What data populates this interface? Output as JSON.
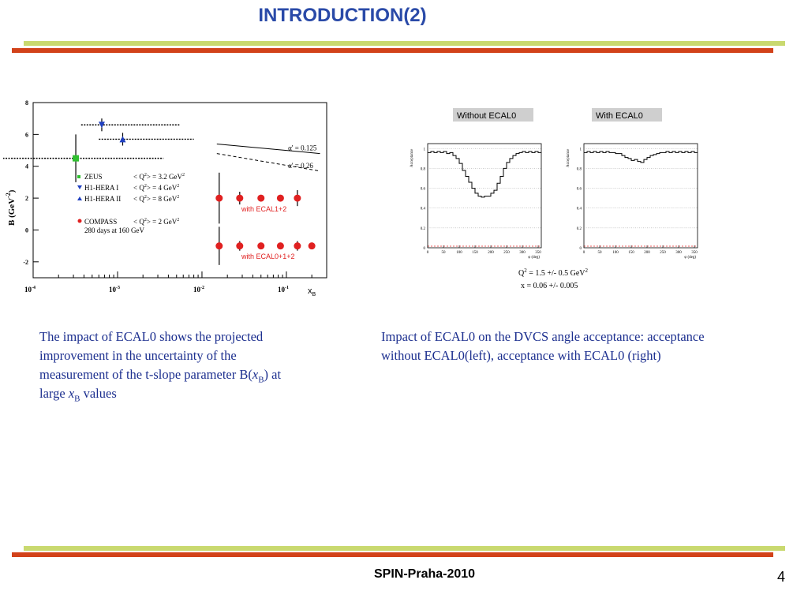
{
  "slide": {
    "title": "INTRODUCTION(2)",
    "footer": "SPIN-Praha-2010",
    "page_number": "4"
  },
  "captions": {
    "left": {
      "line1": "The impact of  ECAL0 shows the projected",
      "line2": "improvement in the uncertainty of  the",
      "line3_pre": "measurement of the t-slope parameter B(",
      "var_x": "x",
      "sub_b": "B",
      "line3_post": ") at",
      "line4_pre": "large ",
      "line4_post": " values"
    },
    "right": {
      "line1": "Impact of ECAL0 on the DVCS  angle acceptance: acceptance",
      "line2": "without ECAL0(left), acceptance with ECAL0 (right)"
    }
  },
  "colors": {
    "accent_blue": "#2a4aa8",
    "bar_green": "#c9d96f",
    "bar_red": "#d2421a",
    "compass_red": "#e02020",
    "zeus_green": "#30c030",
    "hera_blue": "#2040c0"
  },
  "chart_data": [
    {
      "type": "scatter",
      "title": "",
      "xscale": "log",
      "xlabel": "x",
      "xlabel_sub": "B",
      "ylabel": "B (GeV",
      "ylabel_sup": "-2",
      "ylabel_end": ")",
      "xlim": [
        0.0001,
        0.3
      ],
      "ylim": [
        -3,
        8
      ],
      "yticks": [
        -2,
        0,
        2,
        4,
        6,
        8
      ],
      "xtick_labels": [
        {
          "base": "10",
          "exp": "-4"
        },
        {
          "base": "10",
          "exp": "-3"
        },
        {
          "base": "10",
          "exp": "-2"
        },
        {
          "base": "10",
          "exp": "-1"
        }
      ],
      "series": [
        {
          "name": "ZEUS",
          "marker": "square",
          "color": "#30c030",
          "x": [
            0.00032
          ],
          "y": [
            4.5
          ],
          "err": [
            1.5
          ],
          "xerr": [
            [
              3e-05,
              0.0035
            ]
          ]
        },
        {
          "name": "H1-HERA I",
          "marker": "triangle-down",
          "color": "#2040c0",
          "x": [
            0.00065
          ],
          "y": [
            6.6
          ],
          "err": [
            0.4
          ],
          "xerr": [
            [
              0.00037,
              0.0054
            ]
          ]
        },
        {
          "name": "H1-HERA II",
          "marker": "triangle-up",
          "color": "#2040c0",
          "x": [
            0.00115
          ],
          "y": [
            5.7
          ],
          "err": [
            0.4
          ],
          "xerr": [
            [
              0.0006,
              0.008
            ]
          ]
        },
        {
          "name": "COMPASS with ECAL1+2",
          "marker": "circle",
          "color": "#e02020",
          "x": [
            0.016,
            0.028,
            0.05,
            0.085,
            0.135
          ],
          "y": [
            2,
            2,
            2,
            2,
            2
          ],
          "err": [
            1.6,
            0.4,
            0.15,
            0.15,
            0.5
          ]
        },
        {
          "name": "COMPASS with ECAL0+1+2",
          "marker": "circle",
          "color": "#e02020",
          "x": [
            0.016,
            0.028,
            0.05,
            0.085,
            0.135,
            0.2
          ],
          "y": [
            -1,
            -1,
            -1,
            -1,
            -1,
            -1
          ],
          "err": [
            1.2,
            0.3,
            0.1,
            0.1,
            0.3,
            0.1
          ]
        }
      ],
      "model_lines": [
        {
          "label": "α' = 0.125",
          "x": [
            0.015,
            0.25
          ],
          "y": [
            5.4,
            4.8
          ],
          "style": "solid"
        },
        {
          "label": "α' = 0.26",
          "x": [
            0.015,
            0.25
          ],
          "y": [
            4.8,
            3.7
          ],
          "style": "dashed"
        }
      ],
      "legend": [
        {
          "name": "ZEUS",
          "q2": "< Q",
          "q2_sup": "2",
          "q2_val": "> = 3.2 GeV",
          "unit_sup": "2"
        },
        {
          "name": "H1-HERA I",
          "q2": "< Q",
          "q2_sup": "2",
          "q2_val": "> = 4 GeV",
          "unit_sup": "2"
        },
        {
          "name": "H1-HERA II",
          "q2": "< Q",
          "q2_sup": "2",
          "q2_val": "> = 8 GeV",
          "unit_sup": "2"
        },
        {
          "name": "COMPASS",
          "q2": "< Q",
          "q2_sup": "2",
          "q2_val": "> = 2 GeV",
          "unit_sup": "2"
        }
      ],
      "legend_extra": "280 days at 160 GeV",
      "annotations": {
        "ecal12": "with ECAL1+2",
        "ecal012": "with ECAL0+1+2"
      }
    },
    {
      "type": "line",
      "title": "Without ECAL0",
      "xlabel": "φ (deg)",
      "ylabel": "Acceptance",
      "xlim": [
        0,
        360
      ],
      "ylim": [
        0,
        1.05
      ],
      "xticks": [
        0,
        50,
        100,
        150,
        200,
        250,
        300,
        350
      ],
      "yticks": [
        0.2,
        0.4,
        0.6,
        0.8,
        1
      ],
      "ytick_labels": [
        "0.2",
        "0.4",
        "0.6",
        "0.8",
        "1"
      ],
      "x": [
        0,
        10,
        20,
        30,
        40,
        50,
        60,
        70,
        80,
        90,
        100,
        110,
        120,
        130,
        140,
        150,
        160,
        170,
        180,
        190,
        200,
        210,
        220,
        230,
        240,
        250,
        260,
        270,
        280,
        290,
        300,
        310,
        320,
        330,
        340,
        350,
        360
      ],
      "y": [
        0.96,
        0.97,
        0.96,
        0.97,
        0.96,
        0.97,
        0.95,
        0.96,
        0.93,
        0.9,
        0.85,
        0.78,
        0.72,
        0.66,
        0.6,
        0.55,
        0.52,
        0.51,
        0.52,
        0.52,
        0.55,
        0.58,
        0.65,
        0.72,
        0.8,
        0.86,
        0.9,
        0.93,
        0.95,
        0.96,
        0.97,
        0.96,
        0.97,
        0.96,
        0.97,
        0.96,
        0.96
      ]
    },
    {
      "type": "line",
      "title": "With ECAL0",
      "xlabel": "φ (deg)",
      "ylabel": "Acceptance",
      "xlim": [
        0,
        360
      ],
      "ylim": [
        0,
        1.05
      ],
      "xticks": [
        0,
        50,
        100,
        150,
        200,
        250,
        300,
        350
      ],
      "yticks": [
        0.2,
        0.4,
        0.6,
        0.8,
        1
      ],
      "ytick_labels": [
        "0.2",
        "0.4",
        "0.6",
        "0.8",
        "1"
      ],
      "x": [
        0,
        10,
        20,
        30,
        40,
        50,
        60,
        70,
        80,
        90,
        100,
        110,
        120,
        130,
        140,
        150,
        160,
        170,
        180,
        190,
        200,
        210,
        220,
        230,
        240,
        250,
        260,
        270,
        280,
        290,
        300,
        310,
        320,
        330,
        340,
        350,
        360
      ],
      "y": [
        0.96,
        0.97,
        0.96,
        0.97,
        0.96,
        0.97,
        0.96,
        0.97,
        0.96,
        0.96,
        0.95,
        0.95,
        0.93,
        0.91,
        0.9,
        0.88,
        0.89,
        0.87,
        0.86,
        0.89,
        0.91,
        0.93,
        0.94,
        0.95,
        0.96,
        0.96,
        0.97,
        0.96,
        0.97,
        0.96,
        0.97,
        0.96,
        0.97,
        0.96,
        0.97,
        0.96,
        0.96
      ]
    }
  ],
  "acceptance_caption": {
    "q2_pre": "Q",
    "q2_sup": "2",
    "q2_post": " = 1.5 +/- 0.5 GeV",
    "q2_unit_sup": "2",
    "x_line": "x = 0.06 +/- 0.005"
  }
}
